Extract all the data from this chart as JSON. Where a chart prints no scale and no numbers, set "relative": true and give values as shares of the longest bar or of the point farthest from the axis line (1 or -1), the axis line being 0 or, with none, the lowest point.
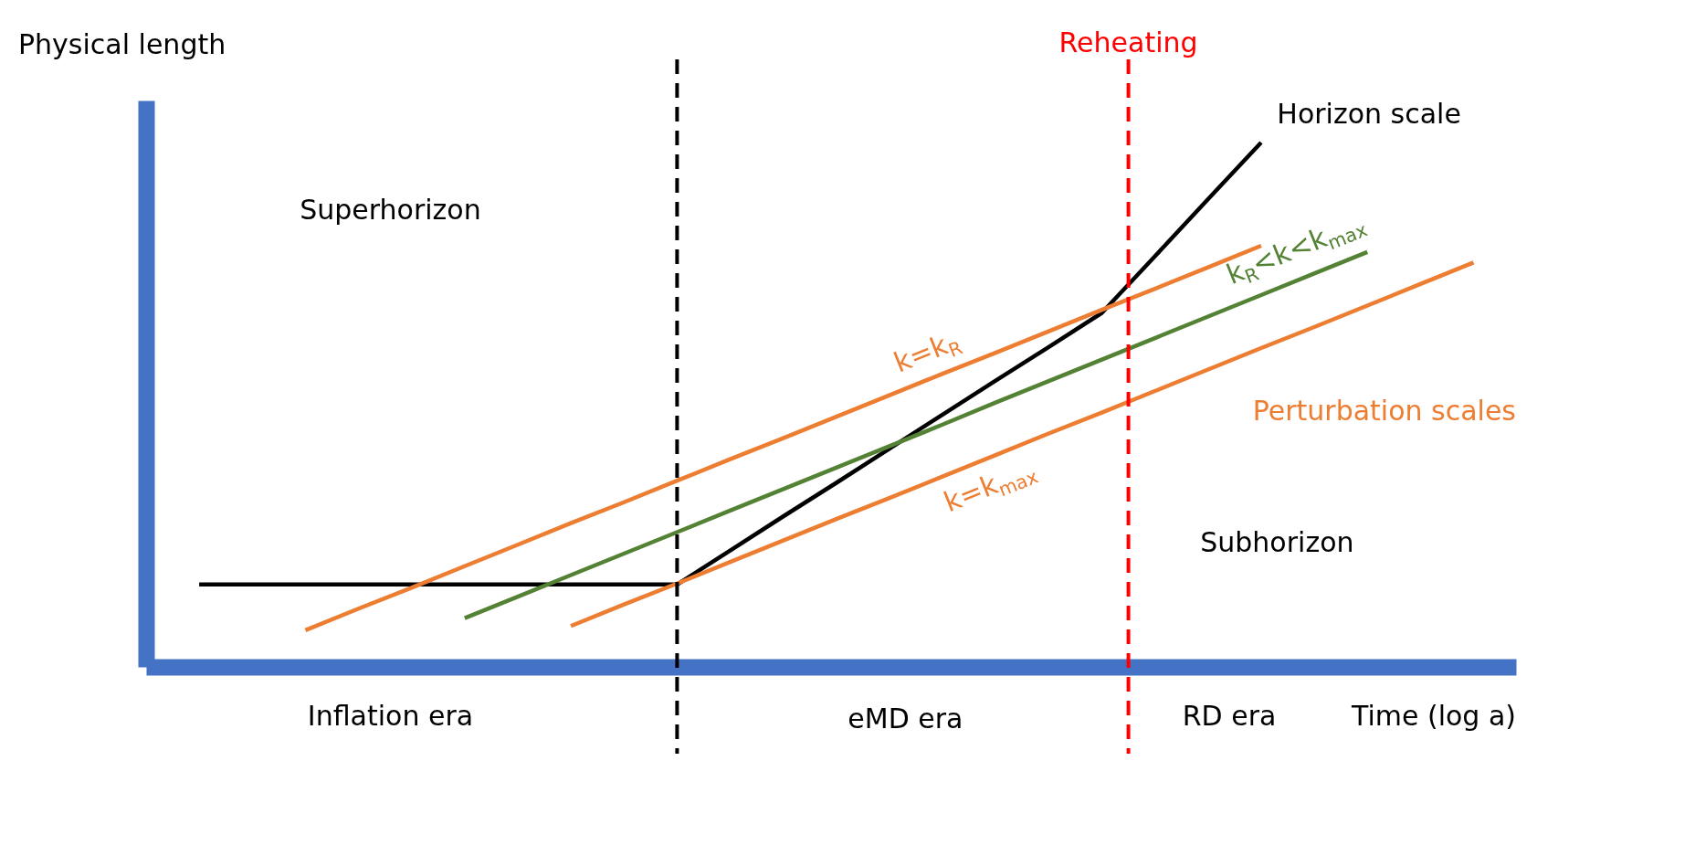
{
  "chart_data": {
    "type": "line",
    "relative": true,
    "xlabel": "Time (log a)",
    "ylabel": "Physical length",
    "line_style": "solid",
    "categories": [
      null,
      null,
      null,
      null,
      null,
      null,
      null,
      null,
      null,
      null,
      null,
      null,
      null,
      null,
      null,
      null,
      null,
      null,
      null,
      null,
      null,
      null,
      null,
      null,
      null,
      null
    ],
    "series": [
      {
        "name": "Horizon scale",
        "color": "#000000",
        "values": [
          null,
          0.157,
          0.157,
          0.157,
          0.157,
          0.157,
          0.157,
          0.157,
          0.157,
          0.157,
          0.157,
          0.222,
          0.287,
          0.351,
          0.416,
          0.481,
          0.546,
          0.61,
          0.675,
          0.783,
          0.892,
          1.0,
          null,
          null,
          null,
          null
        ]
      },
      {
        "name": "k=k$_{R}$",
        "color": "#ed7d31",
        "values": [
          null,
          null,
          null,
          0.07,
          0.111,
          0.151,
          0.192,
          0.233,
          0.274,
          0.314,
          0.355,
          0.396,
          0.436,
          0.477,
          0.518,
          0.559,
          0.599,
          0.64,
          0.681,
          0.721,
          0.762,
          0.803,
          null,
          null,
          null,
          null
        ]
      },
      {
        "name": "k$_{R}$<k<k$_{max}$",
        "color": "#548235",
        "values": [
          null,
          null,
          null,
          null,
          null,
          null,
          0.093,
          0.134,
          0.175,
          0.216,
          0.257,
          0.298,
          0.339,
          0.38,
          0.421,
          0.462,
          0.504,
          0.545,
          0.586,
          0.627,
          0.668,
          0.709,
          0.75,
          0.791,
          null,
          null
        ]
      },
      {
        "name": "k=k$_{max}$",
        "color": "#ed7d31",
        "values": [
          null,
          null,
          null,
          null,
          null,
          null,
          null,
          null,
          0.078,
          0.119,
          0.159,
          0.2,
          0.241,
          0.282,
          0.322,
          0.363,
          0.404,
          0.445,
          0.485,
          0.526,
          0.567,
          0.608,
          0.648,
          0.689,
          0.73,
          0.771
        ]
      }
    ],
    "annotations": [
      "Superhorizon",
      "Subhorizon",
      "Perturbation scales",
      "Inflation era",
      "eMD era",
      "RD era",
      "Reheating"
    ]
  }
}
